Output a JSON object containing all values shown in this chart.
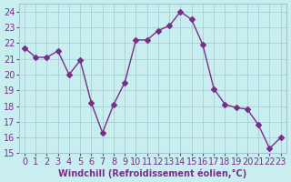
{
  "x": [
    0,
    1,
    2,
    3,
    4,
    5,
    6,
    7,
    8,
    9,
    10,
    11,
    12,
    13,
    14,
    15,
    16,
    17,
    18,
    19,
    20,
    21,
    22,
    23
  ],
  "y": [
    21.7,
    21.1,
    21.1,
    21.5,
    20.0,
    20.9,
    18.2,
    16.3,
    18.1,
    19.5,
    22.2,
    22.2,
    22.8,
    23.1,
    24.0,
    23.5,
    21.9,
    19.1,
    18.1,
    17.9,
    17.8,
    16.8,
    15.3,
    16.0
  ],
  "line_color": "#7b2d8b",
  "marker": "D",
  "marker_size": 3,
  "bg_color": "#c8eef0",
  "grid_color": "#a0c8d0",
  "xlabel": "Windchill (Refroidissement éolien,°C)",
  "xlabel_color": "#7b2d8b",
  "tick_color": "#7b2d8b",
  "ylim": [
    15,
    24.5
  ],
  "xlim": [
    -0.5,
    23.5
  ],
  "yticks": [
    15,
    16,
    17,
    18,
    19,
    20,
    21,
    22,
    23,
    24
  ],
  "xticks": [
    0,
    1,
    2,
    3,
    4,
    5,
    6,
    7,
    8,
    9,
    10,
    11,
    12,
    13,
    14,
    15,
    16,
    17,
    18,
    19,
    20,
    21,
    22,
    23
  ],
  "font_size": 7
}
